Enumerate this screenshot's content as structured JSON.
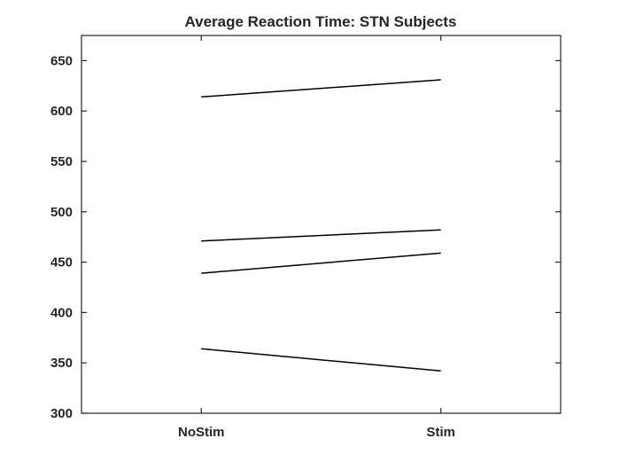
{
  "chart_data": {
    "type": "line",
    "title": "Average Reaction Time: STN Subjects",
    "xlabel": "",
    "ylabel": "",
    "categories": [
      "NoStim",
      "Stim"
    ],
    "xlim": [
      0.5,
      2.5
    ],
    "ylim": [
      300,
      675
    ],
    "yticks": [
      300,
      350,
      400,
      450,
      500,
      550,
      600,
      650
    ],
    "grid": false,
    "series": [
      {
        "values": [
          614,
          631
        ]
      },
      {
        "values": [
          471,
          482
        ]
      },
      {
        "values": [
          439,
          459
        ]
      },
      {
        "values": [
          364,
          342
        ]
      }
    ],
    "line_color": "#000000"
  }
}
